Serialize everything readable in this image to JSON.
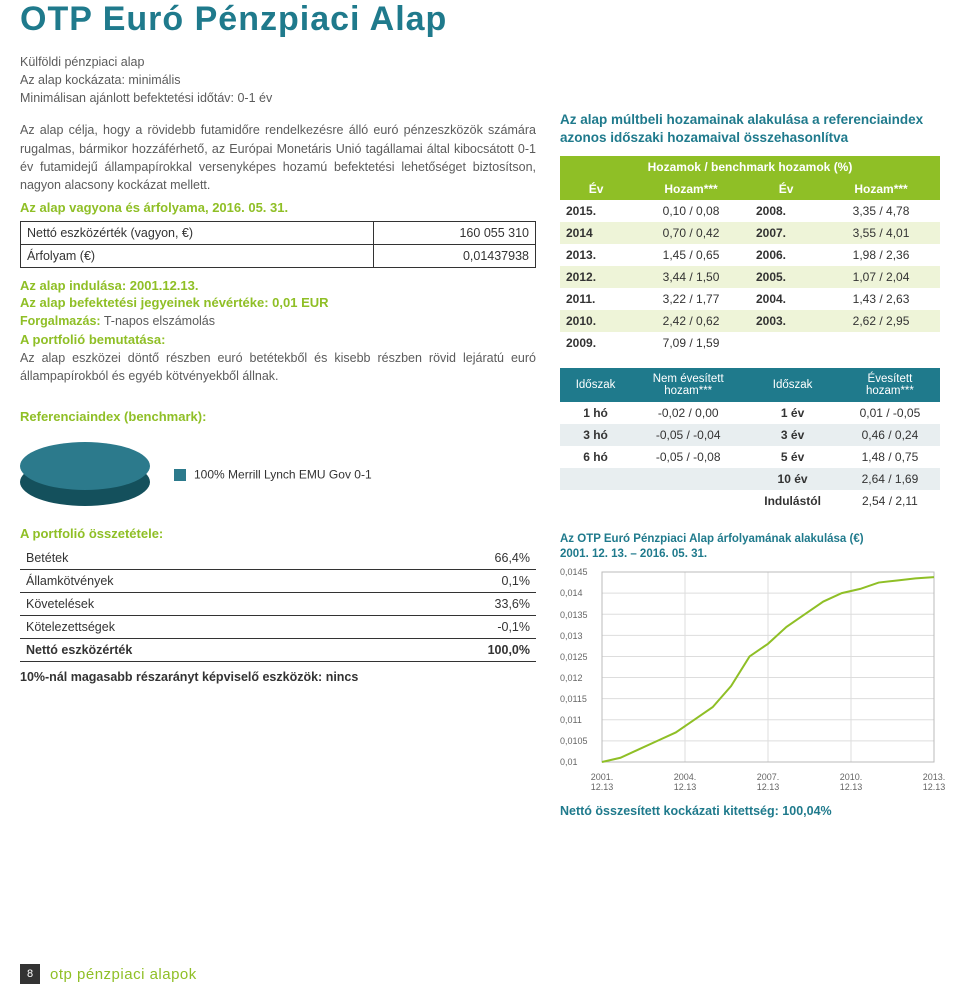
{
  "title": "OTP Euró Pénzpiaci Alap",
  "intro": {
    "l1": "Külföldi pénzpiaci alap",
    "l2": "Az alap kockázata: minimális",
    "l3": "Minimálisan ajánlott befektetési időtáv: 0-1 év"
  },
  "description": "Az alap célja, hogy a rövidebb futamidőre rendelkezésre álló euró pénzeszközök számára rugalmas, bármikor hozzáférhető, az Európai Monetáris Unió tagállamai által kibocsátott 0-1 év futamidejű állampapírokkal versenyképes hozamú befektetési lehetőséget biztosítson, nagyon alacsony kockázat mellett.",
  "nav_heading": "Az alap vagyona és árfolyama, 2016. 05. 31.",
  "nav_rows": [
    {
      "label": "Nettó eszközérték (vagyon, €)",
      "value": "160 055 310"
    },
    {
      "label": "Árfolyam (€)",
      "value": "0,01437938"
    }
  ],
  "launch": "Az alap indulása: 2001.12.13.",
  "nominal": "Az alap befektetési jegyeinek névértéke: 0,01 EUR",
  "settlement_label": "Forgalmazás:",
  "settlement": " T-napos elszámolás",
  "port_intro_label": "A portfolió bemutatása:",
  "port_intro": "Az alap eszközei döntő részben euró betétekből és kisebb részben rövid lejáratú euró állampapírokból és egyéb kötvényekből állnak.",
  "benchmark_label": "Referenciaindex (benchmark):",
  "pie": {
    "color_top": "#2c7a8c",
    "color_side": "#14505c",
    "legend_color": "#2c7a8c",
    "legend": "100% Merrill Lynch EMU Gov 0-1"
  },
  "portfolio_label": "A portfolió összetétele:",
  "portfolio": [
    {
      "label": "Betétek",
      "value": "66,4%"
    },
    {
      "label": "Államkötvények",
      "value": "0,1%"
    },
    {
      "label": "Követelések",
      "value": "33,6%"
    },
    {
      "label": "Kötelezettségek",
      "value": "-0,1%"
    },
    {
      "label": "Nettó eszközérték",
      "value": "100,0%"
    }
  ],
  "over10": "10%-nál magasabb részarányt képviselő eszközök: nincs",
  "r_heading": "Az alap múltbeli hozamainak alakulása a referenciaindex azonos időszaki hozamaival összehasonlítva",
  "returns": {
    "superhead": "Hozamok / benchmark hozamok (%)",
    "head": [
      "Év",
      "Hozam***",
      "Év",
      "Hozam***"
    ],
    "rows": [
      [
        "2015.",
        "0,10 / 0,08",
        "2008.",
        "3,35 / 4,78"
      ],
      [
        "2014",
        "0,70 / 0,42",
        "2007.",
        "3,55 / 4,01"
      ],
      [
        "2013.",
        "1,45 / 0,65",
        "2006.",
        "1,98 / 2,36"
      ],
      [
        "2012.",
        "3,44 / 1,50",
        "2005.",
        "1,07 / 2,04"
      ],
      [
        "2011.",
        "3,22 / 1,77",
        "2004.",
        "1,43 / 2,63"
      ],
      [
        "2010.",
        "2,42 / 0,62",
        "2003.",
        "2,62 / 2,95"
      ],
      [
        "2009.",
        "7,09 / 1,59",
        "",
        ""
      ]
    ]
  },
  "periods": {
    "head": [
      "Időszak",
      "Nem évesített\nhozam***",
      "Időszak",
      "Évesített\nhozam***"
    ],
    "rows": [
      [
        "1 hó",
        "-0,02 / 0,00",
        "1 év",
        "0,01 / -0,05"
      ],
      [
        "3 hó",
        "-0,05 / -0,04",
        "3 év",
        "0,46 / 0,24"
      ],
      [
        "6 hó",
        "-0,05 / -0,08",
        "5 év",
        "1,48 / 0,75"
      ],
      [
        "",
        "",
        "10 év",
        "2,64 / 1,69"
      ],
      [
        "",
        "",
        "Indulástól",
        "2,54 / 2,11"
      ]
    ]
  },
  "chart": {
    "caption": "Az OTP Euró Pénzpiaci Alap árfolyamának alakulása (€)\n2001. 12. 13. – 2016. 05. 31.",
    "line_color": "#8fbf26",
    "grid_color": "#dddddd",
    "ymin": 0.01,
    "ymax": 0.0145,
    "ystep": 0.0005,
    "yticks": [
      "0,0145",
      "0,014",
      "0,0135",
      "0,013",
      "0,0125",
      "0,012",
      "0,0115",
      "0,011",
      "0,0105",
      "0,01"
    ],
    "xticks": [
      "2001.\n12.13",
      "2004.\n12.13",
      "2007.\n12.13",
      "2010.\n12.13",
      "2013.\n12.13"
    ],
    "series_y": [
      0.01,
      0.0101,
      0.0103,
      0.0105,
      0.0107,
      0.011,
      0.0113,
      0.0118,
      0.0125,
      0.0128,
      0.0132,
      0.0135,
      0.0138,
      0.014,
      0.0141,
      0.01425,
      0.0143,
      0.01435,
      0.01438
    ]
  },
  "exposure": "Nettó összesített kockázati kitettség: 100,04%",
  "footer": {
    "page": "8",
    "text": "otp pénzpiaci alapok"
  }
}
